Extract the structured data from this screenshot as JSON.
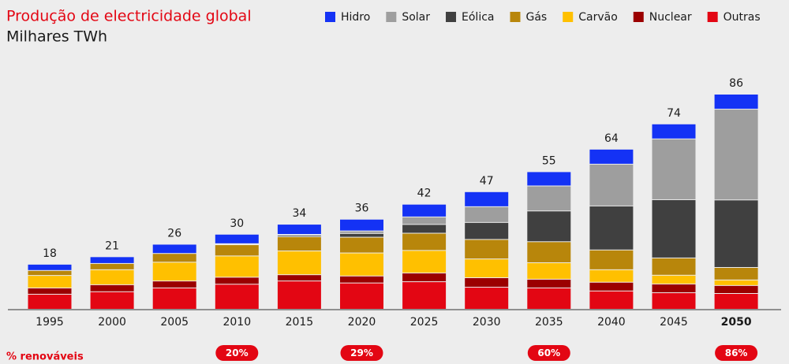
{
  "chart_data": {
    "type": "stacked-bar",
    "title": "Produção de electricidade global",
    "subtitle": "Milhares TWh",
    "categories": [
      "1995",
      "2000",
      "2005",
      "2010",
      "2015",
      "2020",
      "2025",
      "2030",
      "2035",
      "2040",
      "2045",
      "2050"
    ],
    "series": [
      {
        "name": "Outras",
        "color": "#e30613",
        "values": [
          6,
          7,
          8.5,
          10,
          11.3,
          10.5,
          11,
          8.8,
          8.5,
          7.3,
          6.6,
          6.3
        ]
      },
      {
        "name": "Nuclear",
        "color": "#9b0000",
        "values": [
          2.5,
          2.8,
          2.8,
          2.8,
          2.5,
          2.8,
          3.5,
          3.8,
          3.5,
          3.5,
          3.5,
          3.2
        ]
      },
      {
        "name": "Carvão",
        "color": "#ffc000",
        "values": [
          5,
          6,
          7.5,
          8.5,
          9.5,
          9.2,
          9,
          7.5,
          6.6,
          5,
          3.5,
          2.2
        ]
      },
      {
        "name": "Gás",
        "color": "#b8860b",
        "values": [
          2,
          2.5,
          3.5,
          4.5,
          5.7,
          6.3,
          6.9,
          7.8,
          8.4,
          7.9,
          6.9,
          5
        ]
      },
      {
        "name": "Eólica",
        "color": "#404040",
        "values": [
          0,
          0,
          0,
          0.3,
          0.6,
          1.5,
          3.5,
          6.8,
          12.3,
          17.6,
          23.3,
          27
        ]
      },
      {
        "name": "Solar",
        "color": "#9e9e9e",
        "values": [
          0,
          0,
          0,
          0.1,
          0.3,
          1,
          3,
          6.3,
          10,
          16.7,
          24.3,
          36.3
        ]
      },
      {
        "name": "Hidro",
        "color": "#1432f5",
        "values": [
          2.5,
          2.7,
          3.7,
          3.8,
          4.1,
          4.7,
          5.1,
          6,
          5.7,
          6,
          6,
          6
        ]
      }
    ],
    "legend_order": [
      "Hidro",
      "Solar",
      "Eólica",
      "Gás",
      "Carvão",
      "Nuclear",
      "Outras"
    ],
    "totals": [
      18,
      21,
      26,
      30,
      34,
      36,
      42,
      47,
      55,
      64,
      74,
      86
    ],
    "renewable_share": {
      "label": "% renováveis",
      "values": [
        null,
        null,
        null,
        20,
        null,
        29,
        null,
        null,
        60,
        null,
        null,
        86
      ],
      "value_labels": [
        null,
        null,
        null,
        "20%",
        null,
        "29%",
        null,
        null,
        "60%",
        null,
        null,
        "86%"
      ]
    }
  }
}
